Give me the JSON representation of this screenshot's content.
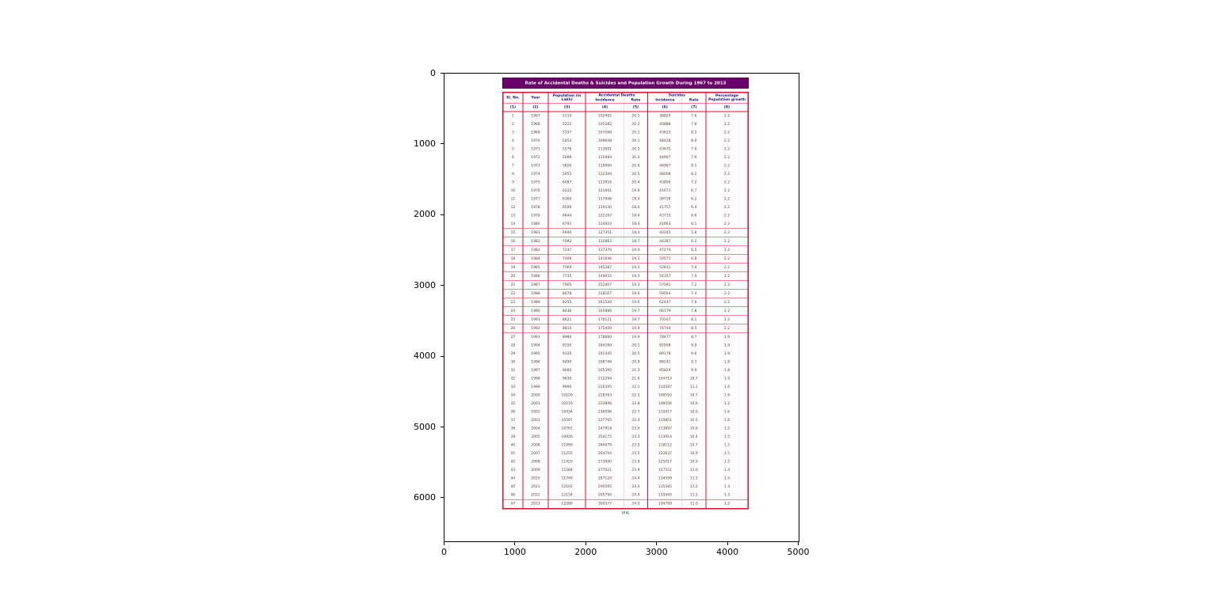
{
  "figure": {
    "background": "#ffffff"
  },
  "table": {
    "title": "Rate of Accidental Deaths & Suicides and Population Growth During 1967 to 2013",
    "title_bg": "#6a006a",
    "border_color": "#d8102e",
    "header_text_color": "#14147d",
    "header": {
      "sl_no": "Sl. No.",
      "year": "Year",
      "population": "Population (in Lakh)",
      "accidental": "Accidental Deaths",
      "suicides": "Suicides",
      "incidence": "Incidence",
      "rate": "Rate",
      "growth": "Percentage Population growth"
    },
    "column_numbers": [
      "(1)",
      "(2)",
      "(3)",
      "(4)",
      "(5)",
      "(6)",
      "(7)",
      "(8)"
    ],
    "caption": "(P.4)"
  },
  "chart_data": {
    "type": "table",
    "title": "Rate of Accidental Deaths & Suicides and Population Growth During 1967 to 2013",
    "columns": [
      "Sl. No.",
      "Year",
      "Population (in Lakh)",
      "Accidental Deaths Incidence",
      "Accidental Deaths Rate",
      "Suicides Incidence",
      "Suicides Rate",
      "Percentage Population growth"
    ],
    "axes": {
      "x_ticks": [
        0,
        1000,
        2000,
        3000,
        4000,
        5000
      ],
      "y_ticks": [
        0,
        1000,
        2000,
        3000,
        4000,
        5000,
        6000
      ]
    },
    "rows": [
      [
        "1",
        "1967",
        "5110",
        "102492",
        "20.1",
        "38829",
        "7.6",
        "2.2"
      ],
      [
        "2",
        "1968",
        "5222",
        "105382",
        "20.2",
        "40888",
        "7.8",
        "2.2"
      ],
      [
        "3",
        "1969",
        "5337",
        "107268",
        "20.1",
        "43633",
        "8.2",
        "2.2"
      ],
      [
        "4",
        "1970",
        "5454",
        "109648",
        "20.1",
        "48428",
        "8.9",
        "2.2"
      ],
      [
        "5",
        "1971",
        "5576",
        "113001",
        "20.3",
        "43675",
        "7.8",
        "2.2"
      ],
      [
        "6",
        "1972",
        "5699",
        "115984",
        "20.4",
        "44907",
        "7.9",
        "2.2"
      ],
      [
        "7",
        "1973",
        "5826",
        "119094",
        "20.4",
        "46967",
        "8.1",
        "2.2"
      ],
      [
        "8",
        "1974",
        "5955",
        "122304",
        "20.5",
        "48008",
        "8.1",
        "2.2"
      ],
      [
        "9",
        "1975",
        "6087",
        "123916",
        "20.4",
        "43800",
        "7.2",
        "2.2"
      ],
      [
        "10",
        "1976",
        "6222",
        "121941",
        "19.6",
        "41671",
        "6.7",
        "2.2"
      ],
      [
        "11",
        "1977",
        "6360",
        "117006",
        "18.4",
        "39718",
        "6.2",
        "2.2"
      ],
      [
        "12",
        "1978",
        "6500",
        "119330",
        "18.4",
        "41757",
        "6.4",
        "2.2"
      ],
      [
        "13",
        "1979",
        "6644",
        "122267",
        "18.4",
        "43715",
        "6.6",
        "2.2"
      ],
      [
        "14",
        "1980",
        "6791",
        "124910",
        "18.4",
        "41663",
        "6.1",
        "2.2"
      ],
      [
        "15",
        "1981",
        "6940",
        "127351",
        "18.4",
        "40245",
        "5.8",
        "2.2"
      ],
      [
        "16",
        "1982",
        "7092",
        "132863",
        "18.7",
        "44287",
        "6.2",
        "2.2"
      ],
      [
        "17",
        "1983",
        "7247",
        "137370",
        "19.0",
        "47274",
        "6.5",
        "2.2"
      ],
      [
        "18",
        "1984",
        "7406",
        "141646",
        "19.1",
        "50571",
        "6.8",
        "2.2"
      ],
      [
        "19",
        "1985",
        "7569",
        "145287",
        "19.2",
        "52811",
        "7.0",
        "2.2"
      ],
      [
        "20",
        "1986",
        "7735",
        "149055",
        "19.3",
        "54357",
        "7.0",
        "2.2"
      ],
      [
        "21",
        "1987",
        "7905",
        "152407",
        "19.3",
        "57091",
        "7.2",
        "2.2"
      ],
      [
        "22",
        "1988",
        "8078",
        "158107",
        "19.6",
        "59564",
        "7.4",
        "2.2"
      ],
      [
        "23",
        "1989",
        "8255",
        "161520",
        "19.6",
        "62447",
        "7.6",
        "2.2"
      ],
      [
        "24",
        "1990",
        "8436",
        "165896",
        "19.7",
        "66179",
        "7.8",
        "2.2"
      ],
      [
        "25",
        "1991",
        "8621",
        "170121",
        "19.7",
        "70107",
        "8.1",
        "2.2"
      ],
      [
        "26",
        "1992",
        "8810",
        "175400",
        "19.9",
        "74744",
        "8.5",
        "2.2"
      ],
      [
        "27",
        "1993",
        "8980",
        "178660",
        "19.9",
        "78477",
        "8.7",
        "1.9"
      ],
      [
        "28",
        "1994",
        "9150",
        "184160",
        "20.1",
        "81958",
        "9.0",
        "1.9"
      ],
      [
        "29",
        "1995",
        "9320",
        "191345",
        "20.5",
        "89178",
        "9.6",
        "1.9"
      ],
      [
        "30",
        "1996",
        "9490",
        "198746",
        "20.9",
        "88241",
        "9.3",
        "1.8"
      ],
      [
        "31",
        "1997",
        "9660",
        "205395",
        "21.3",
        "95829",
        "9.9",
        "1.8"
      ],
      [
        "32",
        "1998",
        "9830",
        "212294",
        "21.6",
        "104713",
        "10.7",
        "1.8"
      ],
      [
        "33",
        "1999",
        "9990",
        "220395",
        "22.1",
        "110587",
        "11.1",
        "1.6"
      ],
      [
        "34",
        "2000",
        "10150",
        "228393",
        "22.5",
        "108593",
        "10.7",
        "1.6"
      ],
      [
        "35",
        "2001",
        "10270",
        "233896",
        "22.8",
        "108506",
        "10.6",
        "1.2"
      ],
      [
        "36",
        "2002",
        "10434",
        "236596",
        "22.7",
        "110417",
        "10.6",
        "1.6"
      ],
      [
        "37",
        "2003",
        "10597",
        "237765",
        "22.4",
        "110851",
        "10.5",
        "1.6"
      ],
      [
        "38",
        "2004",
        "10761",
        "247918",
        "23.0",
        "113697",
        "10.6",
        "1.5"
      ],
      [
        "39",
        "2005",
        "10926",
        "254175",
        "23.3",
        "113914",
        "10.4",
        "1.5"
      ],
      [
        "40",
        "2006",
        "11090",
        "260479",
        "23.5",
        "118112",
        "10.7",
        "1.5"
      ],
      [
        "41",
        "2007",
        "11255",
        "264704",
        "23.5",
        "122637",
        "10.9",
        "1.5"
      ],
      [
        "42",
        "2008",
        "11420",
        "273000",
        "23.9",
        "125017",
        "10.9",
        "1.5"
      ],
      [
        "43",
        "2009",
        "11584",
        "277021",
        "23.9",
        "127151",
        "11.0",
        "1.4"
      ],
      [
        "44",
        "2010",
        "11749",
        "287129",
        "24.4",
        "134599",
        "11.5",
        "1.4"
      ],
      [
        "45",
        "2011",
        "12102",
        "290565",
        "24.0",
        "135585",
        "11.2",
        "1.4"
      ],
      [
        "46",
        "2012",
        "12134",
        "295794",
        "24.4",
        "135445",
        "11.2",
        "1.3"
      ],
      [
        "47",
        "2013",
        "12280",
        "300577",
        "24.5",
        "134799",
        "11.0",
        "1.2"
      ]
    ]
  }
}
